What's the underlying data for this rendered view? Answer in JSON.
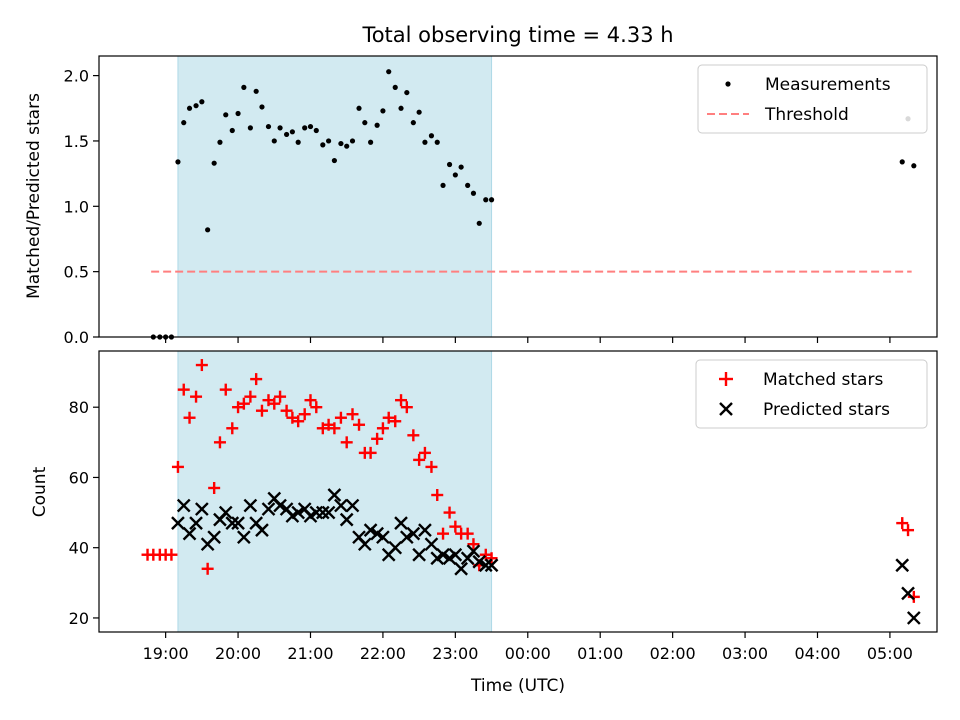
{
  "title": "Total observing time = 4.33 h",
  "xlabel": "Time (UTC)",
  "x_tick_labels": [
    "19:00",
    "20:00",
    "21:00",
    "22:00",
    "23:00",
    "00:00",
    "01:00",
    "02:00",
    "03:00",
    "04:00",
    "05:00"
  ],
  "colors": {
    "measurements": "#000000",
    "threshold": "#ff7f7f",
    "matched": "#ff0000",
    "predicted": "#000000",
    "span": "#add8e6"
  },
  "chart_data": [
    {
      "type": "scatter",
      "ylabel": "Matched/Predicted stars",
      "xlim_hours": [
        18.08,
        29.65
      ],
      "ylim": [
        0,
        2.15
      ],
      "y_ticks": [
        0.0,
        0.5,
        1.0,
        1.5,
        2.0
      ],
      "y_tick_labels": [
        "0.0",
        "0.5",
        "1.0",
        "1.5",
        "2.0"
      ],
      "shaded_span_hours": [
        19.17,
        23.5
      ],
      "legend": {
        "placement": "top-right",
        "entries": [
          "Measurements",
          "Threshold"
        ]
      },
      "threshold": {
        "name": "Threshold",
        "y": 0.5,
        "x_range_hours": [
          18.8,
          29.3
        ]
      },
      "series": [
        {
          "name": "Measurements",
          "x_hours": [
            18.83,
            18.92,
            19.0,
            19.08,
            19.17,
            19.25,
            19.33,
            19.42,
            19.5,
            19.58,
            19.67,
            19.75,
            19.83,
            19.92,
            20.0,
            20.08,
            20.17,
            20.25,
            20.33,
            20.42,
            20.5,
            20.58,
            20.67,
            20.75,
            20.83,
            20.92,
            21.0,
            21.08,
            21.17,
            21.25,
            21.33,
            21.42,
            21.5,
            21.58,
            21.67,
            21.75,
            21.83,
            21.92,
            22.0,
            22.08,
            22.17,
            22.25,
            22.33,
            22.42,
            22.5,
            22.58,
            22.67,
            22.75,
            22.83,
            22.92,
            23.0,
            23.08,
            23.17,
            23.25,
            23.33,
            23.42,
            23.5,
            29.17,
            29.25,
            29.33
          ],
          "y": [
            0,
            0,
            0,
            0,
            1.34,
            1.64,
            1.75,
            1.77,
            1.8,
            0.82,
            1.33,
            1.49,
            1.7,
            1.58,
            1.71,
            1.91,
            1.6,
            1.88,
            1.76,
            1.61,
            1.5,
            1.6,
            1.55,
            1.57,
            1.49,
            1.6,
            1.61,
            1.58,
            1.47,
            1.5,
            1.35,
            1.48,
            1.46,
            1.5,
            1.75,
            1.64,
            1.49,
            1.62,
            1.73,
            2.03,
            1.91,
            1.75,
            1.87,
            1.64,
            1.72,
            1.49,
            1.54,
            1.49,
            1.16,
            1.32,
            1.24,
            1.3,
            1.16,
            1.1,
            0.87,
            1.05,
            1.05,
            1.34,
            1.67,
            1.31
          ]
        }
      ]
    },
    {
      "type": "scatter",
      "ylabel": "Count",
      "xlim_hours": [
        18.08,
        29.65
      ],
      "ylim": [
        16,
        96
      ],
      "y_ticks": [
        20,
        40,
        60,
        80
      ],
      "y_tick_labels": [
        "20",
        "40",
        "60",
        "80"
      ],
      "shaded_span_hours": [
        19.17,
        23.5
      ],
      "legend": {
        "placement": "top-right",
        "entries": [
          "Matched stars",
          "Predicted stars"
        ]
      },
      "series": [
        {
          "name": "Matched stars",
          "marker": "plus",
          "x_hours": [
            18.75,
            18.83,
            18.92,
            19.0,
            19.08,
            19.17,
            19.25,
            19.33,
            19.42,
            19.5,
            19.58,
            19.67,
            19.75,
            19.83,
            19.92,
            20.0,
            20.08,
            20.17,
            20.25,
            20.33,
            20.42,
            20.5,
            20.58,
            20.67,
            20.75,
            20.83,
            20.92,
            21.0,
            21.08,
            21.17,
            21.25,
            21.33,
            21.42,
            21.5,
            21.58,
            21.67,
            21.75,
            21.83,
            21.92,
            22.0,
            22.08,
            22.17,
            22.25,
            22.33,
            22.42,
            22.5,
            22.58,
            22.67,
            22.75,
            22.83,
            22.92,
            23.0,
            23.08,
            23.17,
            23.25,
            23.33,
            23.42,
            23.5,
            29.17,
            29.25,
            29.33
          ],
          "y": [
            38,
            38,
            38,
            38,
            38,
            63,
            85,
            77,
            83,
            92,
            34,
            57,
            70,
            85,
            74,
            80,
            81,
            83,
            88,
            79,
            82,
            81,
            83,
            79,
            77,
            76,
            78,
            82,
            80,
            74,
            75,
            74,
            77,
            70,
            78,
            75,
            67,
            67,
            71,
            74,
            77,
            76,
            82,
            80,
            72,
            65,
            67,
            63,
            55,
            44,
            50,
            46,
            44,
            44,
            41,
            35,
            38,
            37,
            47,
            45,
            26
          ]
        },
        {
          "name": "Predicted stars",
          "marker": "x",
          "x_hours": [
            19.17,
            19.25,
            19.33,
            19.42,
            19.5,
            19.58,
            19.67,
            19.75,
            19.83,
            19.92,
            20.0,
            20.08,
            20.17,
            20.25,
            20.33,
            20.42,
            20.5,
            20.58,
            20.67,
            20.75,
            20.83,
            20.92,
            21.0,
            21.08,
            21.17,
            21.25,
            21.33,
            21.42,
            21.5,
            21.58,
            21.67,
            21.75,
            21.83,
            21.92,
            22.0,
            22.08,
            22.17,
            22.25,
            22.33,
            22.42,
            22.5,
            22.58,
            22.67,
            22.75,
            22.83,
            22.92,
            23.0,
            23.08,
            23.17,
            23.25,
            23.33,
            23.42,
            23.5,
            29.17,
            29.25,
            29.33
          ],
          "y": [
            47,
            52,
            44,
            47,
            51,
            41,
            43,
            48,
            50,
            47,
            47,
            43,
            52,
            47,
            45,
            51,
            54,
            52,
            51,
            49,
            50,
            51,
            49,
            50,
            50,
            50,
            55,
            52,
            48,
            52,
            43,
            41,
            45,
            44,
            43,
            38,
            40,
            47,
            43,
            44,
            38,
            45,
            41,
            37,
            38,
            37,
            38,
            34,
            37,
            39,
            36,
            35,
            35,
            35,
            27,
            20
          ]
        }
      ]
    }
  ]
}
